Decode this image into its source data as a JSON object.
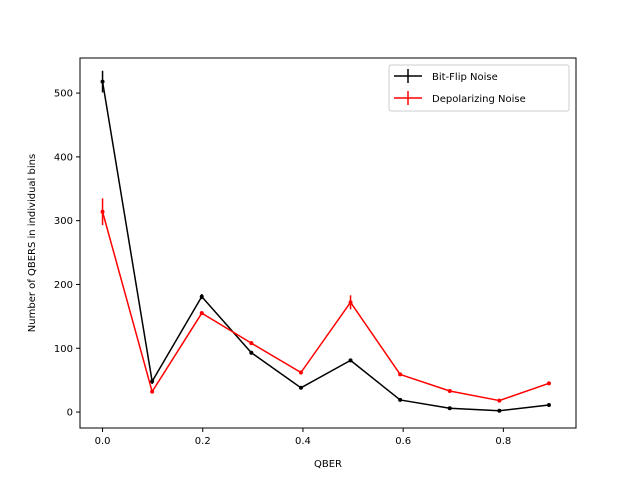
{
  "chart_data": {
    "type": "line",
    "xlabel": "QBER",
    "ylabel": "Number of QBERS in individual bins",
    "xlim": [
      -0.045,
      0.945
    ],
    "ylim": [
      -25,
      555
    ],
    "xticks": [
      0.0,
      0.2,
      0.4,
      0.6,
      0.8
    ],
    "xtick_labels": [
      "0.0",
      "0.2",
      "0.4",
      "0.6",
      "0.8"
    ],
    "yticks": [
      0,
      100,
      200,
      300,
      400,
      500
    ],
    "ytick_labels": [
      "0",
      "100",
      "200",
      "300",
      "400",
      "500"
    ],
    "grid": false,
    "legend_position": "top-right",
    "x": [
      0.0,
      0.099,
      0.198,
      0.297,
      0.396,
      0.495,
      0.594,
      0.693,
      0.792,
      0.891
    ],
    "series": [
      {
        "name": "Bit-Flip Noise",
        "color": "#000000",
        "values": [
          518,
          48,
          181,
          93,
          38,
          81,
          19,
          6,
          2,
          11
        ],
        "errors": [
          17,
          4,
          4,
          3,
          2,
          3,
          2,
          1,
          1,
          2
        ]
      },
      {
        "name": "Depolarizing Noise",
        "color": "#ff0000",
        "values": [
          314,
          32,
          155,
          108,
          62,
          172,
          59,
          33,
          18,
          45
        ],
        "errors": [
          21,
          3,
          3,
          3,
          3,
          11,
          2,
          2,
          1,
          2
        ]
      }
    ]
  }
}
